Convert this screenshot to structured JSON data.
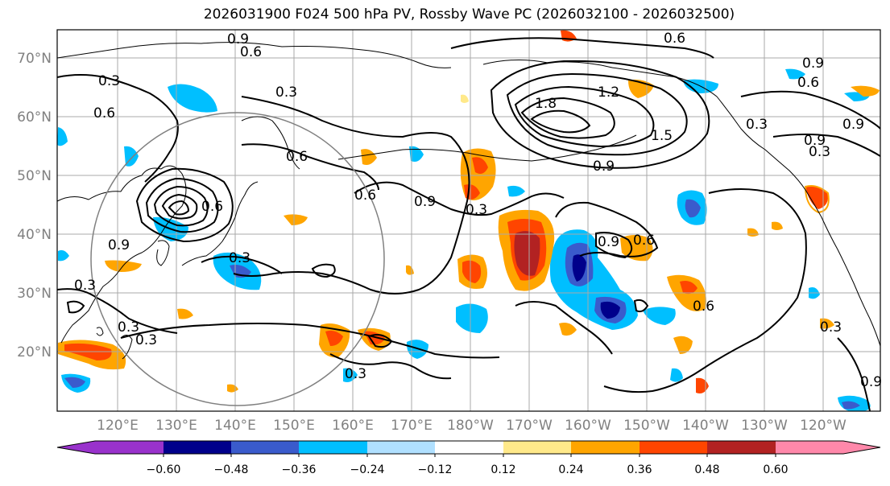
{
  "title": "2026031900 F024 500 hPa PV, Rossby Wave PC (2026032100 - 2026032500)",
  "lat_labels": [
    "70°N",
    "60°N",
    "50°N",
    "40°N",
    "30°N",
    "20°N"
  ],
  "lon_labels": [
    "120°E",
    "130°E",
    "140°E",
    "150°E",
    "160°E",
    "170°E",
    "180°W",
    "170°W",
    "160°W",
    "150°W",
    "140°W",
    "130°W",
    "120°W"
  ],
  "colorbar": {
    "colors": [
      "#9932cc",
      "#00008b",
      "#3a5bcc",
      "#00bfff",
      "#b0e0ff",
      "#ffffff",
      "#ffe98a",
      "#ffa500",
      "#ff4500",
      "#b22222",
      "#ff88aa"
    ],
    "tick_labels": [
      "−0.60",
      "−0.48",
      "−0.36",
      "−0.24",
      "−0.12",
      "0.12",
      "0.24",
      "0.36",
      "0.48",
      "0.60"
    ]
  },
  "contour_labels": [
    "0.6",
    "0.9",
    "0.6",
    "0.3",
    "0.6",
    "0.3",
    "0.6",
    "0.3",
    "0.6",
    "0.9",
    "0.3",
    "0.3",
    "0.3",
    "0.3",
    "1.2",
    "1.8",
    "1.5",
    "0.9",
    "0.9",
    "0.9",
    "0.6",
    "0.3",
    "0.9",
    "0.6",
    "0.9",
    "0.3",
    "0.6",
    "0.3",
    "0.9",
    "0.9",
    "0.6",
    "0.3"
  ],
  "colors": {
    "coast": "#000000",
    "grid": "#a9a9a9",
    "contour": "#000000",
    "circle": "#808080"
  }
}
